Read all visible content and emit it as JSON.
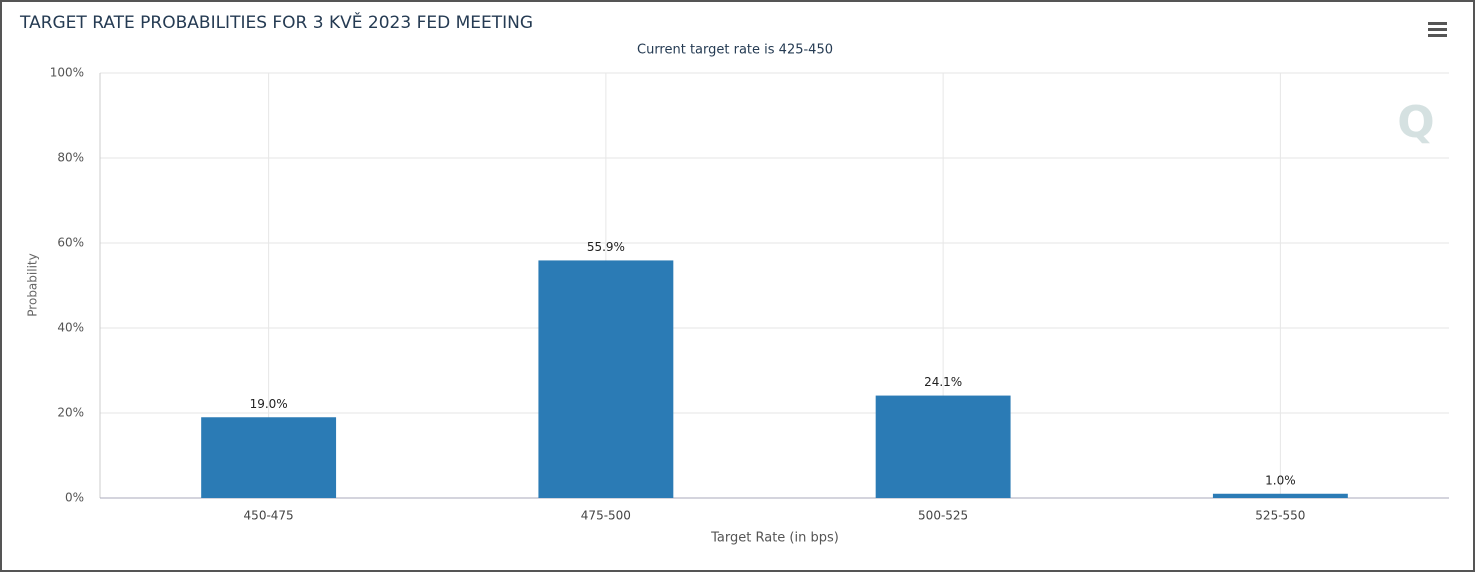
{
  "chart_data": {
    "type": "bar",
    "title": "TARGET RATE PROBABILITIES FOR 3 KVĚ 2023 FED MEETING",
    "subtitle": "Current target rate is 425-450",
    "x_label": "Target Rate (in bps)",
    "y_label": "Probability",
    "categories": [
      "450-475",
      "475-500",
      "500-525",
      "525-550"
    ],
    "values": [
      19.0,
      55.9,
      24.1,
      1.0
    ],
    "value_labels": [
      "19.0%",
      "55.9%",
      "24.1%",
      "1.0%"
    ],
    "color": "#2b7bb5",
    "ylim": [
      0,
      100
    ],
    "yticks": [
      {
        "value": 0,
        "label": "0%"
      },
      {
        "value": 20,
        "label": "20%"
      },
      {
        "value": 40,
        "label": "40%"
      },
      {
        "value": 60,
        "label": "60%"
      },
      {
        "value": 80,
        "label": "80%"
      },
      {
        "value": 100,
        "label": "100%"
      }
    ],
    "grid": true
  }
}
